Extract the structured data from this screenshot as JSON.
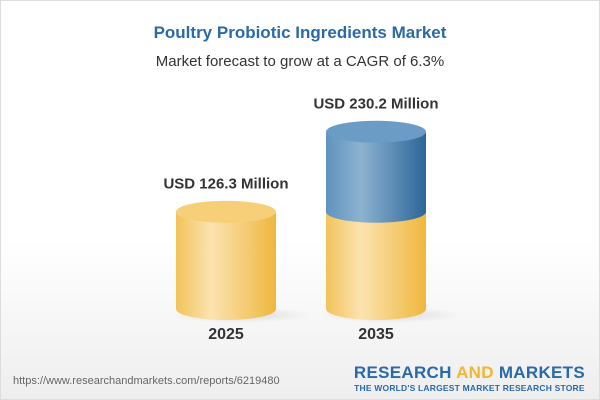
{
  "title": "Poultry Probiotic Ingredients Market",
  "subtitle": "Market forecast to grow at a CAGR of 6.3%",
  "chart_data": {
    "type": "bar",
    "categories": [
      "2025",
      "2035"
    ],
    "values": [
      126.3,
      230.2
    ],
    "data_labels": [
      "USD 126.3 Million",
      "USD 230.2 Million"
    ],
    "unit": "USD Million",
    "colors": {
      "base": "#f2c35a",
      "growth": "#3f7fb5"
    }
  },
  "footer": {
    "url": "https://www.researchandmarkets.com/reports/6219480",
    "logo_part1": "RESEARCH ",
    "logo_part2": "AND",
    "logo_part3": " MARKETS",
    "tagline": "THE WORLD'S LARGEST MARKET RESEARCH STORE"
  }
}
